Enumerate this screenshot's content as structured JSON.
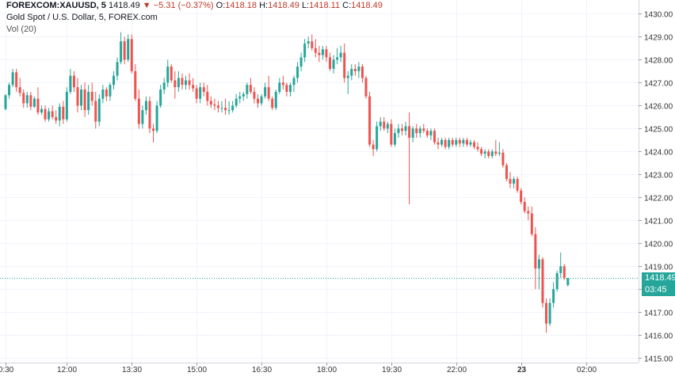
{
  "header": {
    "symbol": "FOREXCOM:XAUUSD, 5",
    "last": "1418.49",
    "change_arrow": "▼",
    "change": "−5.31 (−0.37%)",
    "o_label": "O:",
    "o_value": "1418.18",
    "h_label": "H:",
    "h_value": "1418.49",
    "l_label": "L:",
    "l_value": "1418.11",
    "c_label": "C:",
    "c_value": "1418.49",
    "title": "Gold Spot / U.S. Dollar, 5, FOREX.com",
    "volume_label": "Vol (20)"
  },
  "price_tag": {
    "price": "1418.49",
    "countdown": "03:45"
  },
  "colors": {
    "up": "#26a69a",
    "down": "#ef5350",
    "grid": "#f0f3fa",
    "price_line": "#26a69a",
    "axis_text": "#333333"
  },
  "chart_data": {
    "type": "candlestick",
    "ylim": [
      1414.8,
      1430.6
    ],
    "yticks": [
      1415,
      1416,
      1417,
      1418,
      1419,
      1420,
      1421,
      1422,
      1423,
      1424,
      1425,
      1426,
      1427,
      1428,
      1429,
      1430
    ],
    "ytick_labels": [
      "1415.00",
      "1416.00",
      "1417.00",
      "1418.00",
      "1419.00",
      "1420.00",
      "1421.00",
      "1422.00",
      "1423.00",
      "1424.00",
      "1425.00",
      "1426.00",
      "1427.00",
      "1428.00",
      "1429.00",
      "1430.00"
    ],
    "xtick_labels": [
      "0:30",
      "12:00",
      "13:30",
      "15:00",
      "16:30",
      "18:00",
      "19:30",
      "22:00",
      "23",
      "02:00"
    ],
    "xtick_index": [
      0,
      17,
      35,
      53,
      71,
      89,
      107,
      125,
      143,
      161
    ],
    "last_price": 1418.49,
    "candles": [
      [
        1425.85,
        1426.5,
        1425.8,
        1426.45
      ],
      [
        1426.45,
        1427.0,
        1426.3,
        1426.9
      ],
      [
        1426.9,
        1427.6,
        1426.8,
        1427.45
      ],
      [
        1427.45,
        1427.6,
        1426.6,
        1426.8
      ],
      [
        1426.8,
        1427.2,
        1426.4,
        1426.55
      ],
      [
        1426.55,
        1426.7,
        1425.9,
        1426.1
      ],
      [
        1426.1,
        1426.6,
        1425.9,
        1426.45
      ],
      [
        1426.45,
        1426.6,
        1425.8,
        1425.95
      ],
      [
        1425.95,
        1426.4,
        1425.9,
        1426.3
      ],
      [
        1426.3,
        1426.8,
        1425.6,
        1425.7
      ],
      [
        1425.7,
        1426.0,
        1425.6,
        1425.85
      ],
      [
        1425.85,
        1426.0,
        1425.3,
        1425.4
      ],
      [
        1425.4,
        1425.9,
        1425.3,
        1425.75
      ],
      [
        1425.75,
        1426.0,
        1425.4,
        1425.5
      ],
      [
        1425.5,
        1425.8,
        1425.2,
        1425.35
      ],
      [
        1425.35,
        1426.1,
        1425.1,
        1425.95
      ],
      [
        1425.95,
        1426.2,
        1425.2,
        1425.4
      ],
      [
        1425.4,
        1426.8,
        1425.3,
        1426.6
      ],
      [
        1426.6,
        1427.6,
        1426.5,
        1427.3
      ],
      [
        1427.3,
        1427.5,
        1426.6,
        1426.8
      ],
      [
        1426.8,
        1427.2,
        1425.7,
        1426.0
      ],
      [
        1426.0,
        1426.9,
        1425.8,
        1426.7
      ],
      [
        1426.7,
        1427.0,
        1425.5,
        1425.8
      ],
      [
        1425.8,
        1426.9,
        1425.6,
        1426.6
      ],
      [
        1426.6,
        1427.0,
        1426.0,
        1426.2
      ],
      [
        1426.2,
        1426.6,
        1425.0,
        1425.3
      ],
      [
        1425.3,
        1426.5,
        1425.1,
        1426.3
      ],
      [
        1426.3,
        1426.9,
        1426.1,
        1426.7
      ],
      [
        1426.7,
        1426.8,
        1426.2,
        1426.4
      ],
      [
        1426.4,
        1427.0,
        1426.2,
        1426.9
      ],
      [
        1426.9,
        1427.5,
        1426.7,
        1427.3
      ],
      [
        1427.3,
        1428.1,
        1427.1,
        1427.9
      ],
      [
        1427.9,
        1429.2,
        1427.8,
        1428.8
      ],
      [
        1428.8,
        1429.0,
        1427.8,
        1428.0
      ],
      [
        1428.0,
        1429.1,
        1427.9,
        1428.9
      ],
      [
        1428.9,
        1429.1,
        1427.4,
        1427.5
      ],
      [
        1427.5,
        1427.8,
        1426.2,
        1426.3
      ],
      [
        1426.3,
        1426.7,
        1425.0,
        1425.2
      ],
      [
        1425.2,
        1426.0,
        1425.0,
        1425.8
      ],
      [
        1425.8,
        1426.4,
        1425.6,
        1426.2
      ],
      [
        1426.2,
        1426.4,
        1424.8,
        1425.0
      ],
      [
        1425.0,
        1425.2,
        1424.4,
        1424.9
      ],
      [
        1424.9,
        1426.2,
        1424.8,
        1426.0
      ],
      [
        1426.0,
        1426.9,
        1425.9,
        1426.7
      ],
      [
        1426.7,
        1427.2,
        1426.5,
        1427.0
      ],
      [
        1427.0,
        1428.0,
        1426.8,
        1427.7
      ],
      [
        1427.7,
        1427.8,
        1427.0,
        1427.1
      ],
      [
        1427.1,
        1427.5,
        1426.3,
        1426.8
      ],
      [
        1426.8,
        1427.5,
        1426.6,
        1427.2
      ],
      [
        1427.2,
        1427.4,
        1426.7,
        1426.9
      ],
      [
        1426.9,
        1427.3,
        1426.7,
        1427.1
      ],
      [
        1427.1,
        1427.4,
        1426.7,
        1426.9
      ],
      [
        1426.9,
        1427.2,
        1426.6,
        1426.75
      ],
      [
        1426.75,
        1426.9,
        1426.1,
        1426.3
      ],
      [
        1426.3,
        1427.0,
        1426.1,
        1426.8
      ],
      [
        1426.8,
        1427.0,
        1426.4,
        1426.6
      ],
      [
        1426.6,
        1426.9,
        1426.0,
        1426.2
      ],
      [
        1426.2,
        1426.4,
        1425.9,
        1426.05
      ],
      [
        1426.05,
        1426.3,
        1425.8,
        1426.0
      ],
      [
        1426.0,
        1426.2,
        1425.7,
        1425.9
      ],
      [
        1425.9,
        1426.2,
        1425.7,
        1425.9
      ],
      [
        1425.9,
        1426.3,
        1425.6,
        1425.8
      ],
      [
        1425.8,
        1426.2,
        1425.6,
        1425.8
      ],
      [
        1425.8,
        1426.2,
        1425.7,
        1426.0
      ],
      [
        1426.0,
        1426.5,
        1425.9,
        1426.3
      ],
      [
        1426.3,
        1426.6,
        1426.1,
        1426.4
      ],
      [
        1426.4,
        1426.6,
        1426.2,
        1426.5
      ],
      [
        1426.5,
        1427.0,
        1426.3,
        1426.9
      ],
      [
        1426.9,
        1427.2,
        1426.5,
        1426.6
      ],
      [
        1426.6,
        1426.8,
        1426.1,
        1426.3
      ],
      [
        1426.3,
        1426.5,
        1425.9,
        1426.1
      ],
      [
        1426.1,
        1426.5,
        1426.0,
        1426.4
      ],
      [
        1426.4,
        1427.0,
        1426.3,
        1426.8
      ],
      [
        1426.8,
        1427.3,
        1426.2,
        1426.3
      ],
      [
        1426.3,
        1426.4,
        1425.8,
        1425.9
      ],
      [
        1425.9,
        1426.7,
        1425.8,
        1426.6
      ],
      [
        1426.6,
        1427.2,
        1426.5,
        1427.0
      ],
      [
        1427.0,
        1427.3,
        1426.7,
        1426.9
      ],
      [
        1426.9,
        1427.0,
        1426.4,
        1426.6
      ],
      [
        1426.6,
        1427.0,
        1426.4,
        1426.9
      ],
      [
        1426.9,
        1427.3,
        1426.6,
        1427.2
      ],
      [
        1427.2,
        1427.9,
        1427.0,
        1427.7
      ],
      [
        1427.7,
        1428.3,
        1427.5,
        1428.1
      ],
      [
        1428.1,
        1428.9,
        1427.9,
        1428.7
      ],
      [
        1428.7,
        1429.0,
        1428.5,
        1428.8
      ],
      [
        1428.8,
        1429.1,
        1428.4,
        1428.5
      ],
      [
        1428.5,
        1428.9,
        1428.1,
        1428.3
      ],
      [
        1428.3,
        1428.6,
        1427.9,
        1428.2
      ],
      [
        1428.2,
        1428.6,
        1428.0,
        1428.45
      ],
      [
        1428.45,
        1428.6,
        1427.9,
        1428.1
      ],
      [
        1428.1,
        1428.3,
        1427.5,
        1427.6
      ],
      [
        1427.6,
        1428.2,
        1427.4,
        1428.0
      ],
      [
        1428.0,
        1428.5,
        1427.8,
        1428.1
      ],
      [
        1428.1,
        1428.6,
        1427.9,
        1428.3
      ],
      [
        1428.3,
        1428.7,
        1427.0,
        1427.2
      ],
      [
        1427.2,
        1427.5,
        1426.5,
        1427.3
      ],
      [
        1427.3,
        1427.8,
        1427.1,
        1427.6
      ],
      [
        1427.6,
        1427.8,
        1427.3,
        1427.5
      ],
      [
        1427.5,
        1427.9,
        1427.2,
        1427.7
      ],
      [
        1427.7,
        1427.8,
        1427.0,
        1427.2
      ],
      [
        1427.2,
        1427.3,
        1426.3,
        1426.4
      ],
      [
        1426.4,
        1426.6,
        1424.2,
        1424.3
      ],
      [
        1424.3,
        1424.5,
        1423.8,
        1424.1
      ],
      [
        1424.1,
        1425.3,
        1424.0,
        1425.1
      ],
      [
        1425.1,
        1425.5,
        1424.9,
        1425.3
      ],
      [
        1425.3,
        1425.5,
        1424.9,
        1425.0
      ],
      [
        1425.0,
        1425.3,
        1424.8,
        1425.2
      ],
      [
        1425.2,
        1425.4,
        1424.2,
        1424.3
      ],
      [
        1424.3,
        1425.0,
        1424.2,
        1424.8
      ],
      [
        1424.8,
        1425.2,
        1424.6,
        1425.0
      ],
      [
        1425.0,
        1425.2,
        1424.7,
        1424.9
      ],
      [
        1424.9,
        1425.3,
        1424.7,
        1425.1
      ],
      [
        1425.1,
        1425.7,
        1421.7,
        1424.6
      ],
      [
        1424.6,
        1425.1,
        1424.4,
        1425.0
      ],
      [
        1425.0,
        1425.2,
        1424.6,
        1424.8
      ],
      [
        1424.8,
        1425.1,
        1424.6,
        1425.0
      ],
      [
        1425.0,
        1425.2,
        1424.8,
        1424.9
      ],
      [
        1424.9,
        1425.0,
        1424.6,
        1424.7
      ],
      [
        1424.7,
        1425.0,
        1424.5,
        1424.9
      ],
      [
        1424.9,
        1425.0,
        1424.3,
        1424.4
      ],
      [
        1424.4,
        1424.6,
        1424.1,
        1424.3
      ],
      [
        1424.3,
        1424.6,
        1424.2,
        1424.5
      ],
      [
        1424.5,
        1424.6,
        1424.1,
        1424.2
      ],
      [
        1424.2,
        1424.6,
        1424.1,
        1424.5
      ],
      [
        1424.5,
        1424.6,
        1424.2,
        1424.3
      ],
      [
        1424.3,
        1424.6,
        1424.2,
        1424.5
      ],
      [
        1424.5,
        1424.6,
        1424.2,
        1424.35
      ],
      [
        1424.35,
        1424.6,
        1424.2,
        1424.5
      ],
      [
        1424.5,
        1424.6,
        1424.2,
        1424.3
      ],
      [
        1424.3,
        1424.5,
        1424.2,
        1424.4
      ],
      [
        1424.4,
        1424.5,
        1424.1,
        1424.2
      ],
      [
        1424.2,
        1424.4,
        1424.0,
        1424.1
      ],
      [
        1424.1,
        1424.2,
        1423.8,
        1423.9
      ],
      [
        1423.9,
        1424.1,
        1423.7,
        1424.0
      ],
      [
        1424.0,
        1424.1,
        1423.7,
        1423.8
      ],
      [
        1423.8,
        1424.1,
        1423.7,
        1424.0
      ],
      [
        1424.0,
        1424.5,
        1423.8,
        1423.9
      ],
      [
        1423.9,
        1424.4,
        1423.8,
        1423.95
      ],
      [
        1423.95,
        1424.1,
        1423.3,
        1423.4
      ],
      [
        1423.4,
        1423.5,
        1422.7,
        1422.8
      ],
      [
        1422.8,
        1423.1,
        1422.4,
        1422.6
      ],
      [
        1422.6,
        1422.9,
        1422.4,
        1422.8
      ],
      [
        1422.8,
        1422.9,
        1422.2,
        1422.3
      ],
      [
        1422.3,
        1422.4,
        1421.7,
        1421.8
      ],
      [
        1421.8,
        1422.0,
        1421.3,
        1421.4
      ],
      [
        1421.4,
        1421.6,
        1421.0,
        1421.3
      ],
      [
        1421.3,
        1421.6,
        1420.3,
        1420.4
      ],
      [
        1420.4,
        1420.7,
        1418.0,
        1418.9
      ],
      [
        1418.9,
        1419.5,
        1418.0,
        1419.3
      ],
      [
        1419.3,
        1419.4,
        1417.2,
        1417.4
      ],
      [
        1417.4,
        1417.6,
        1416.1,
        1416.5
      ],
      [
        1416.5,
        1417.6,
        1416.4,
        1417.4
      ],
      [
        1417.4,
        1418.3,
        1417.2,
        1418.0
      ],
      [
        1418.0,
        1418.8,
        1417.9,
        1418.7
      ],
      [
        1418.7,
        1419.6,
        1418.5,
        1419.0
      ],
      [
        1419.0,
        1419.1,
        1418.4,
        1418.5
      ],
      [
        1418.18,
        1418.49,
        1418.11,
        1418.49
      ]
    ]
  }
}
